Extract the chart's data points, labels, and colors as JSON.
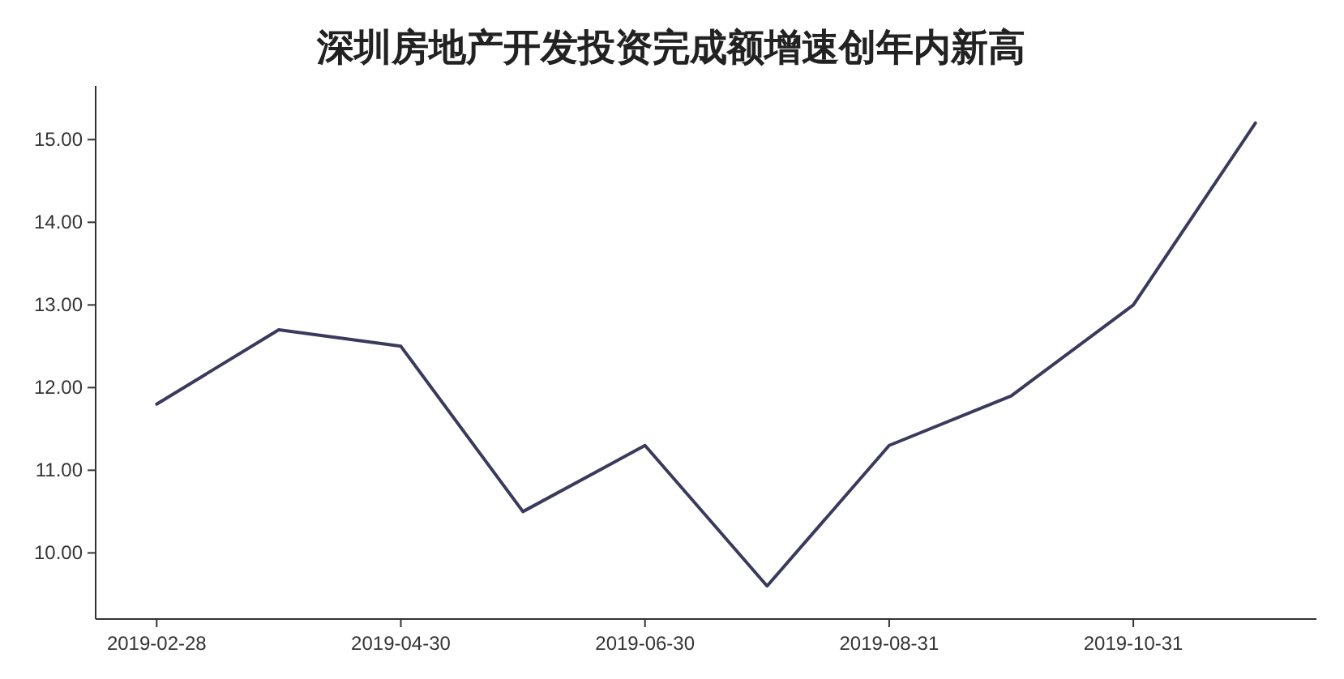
{
  "chart_data": {
    "type": "line",
    "title": "深圳房地产开发投资完成额增速创年内新高",
    "categories": [
      "2019-02-28",
      null,
      "2019-04-30",
      null,
      "2019-06-30",
      null,
      "2019-08-31",
      null,
      "2019-10-31",
      null
    ],
    "series": [
      {
        "color": "#3a3a5c",
        "values": [
          11.8,
          12.7,
          12.5,
          10.5,
          11.3,
          9.6,
          11.3,
          11.9,
          13.0,
          15.2
        ]
      }
    ],
    "ylim": [
      9.2,
      15.65
    ],
    "yticks": [
      {
        "value": 10,
        "label": "10.00"
      },
      {
        "value": 11,
        "label": "11.00"
      },
      {
        "value": 12,
        "label": "12.00"
      },
      {
        "value": 13,
        "label": "13.00"
      },
      {
        "value": 14,
        "label": "14.00"
      },
      {
        "value": 15,
        "label": "15.00"
      }
    ],
    "grid": false,
    "marker": "none",
    "line_style": "solid"
  }
}
